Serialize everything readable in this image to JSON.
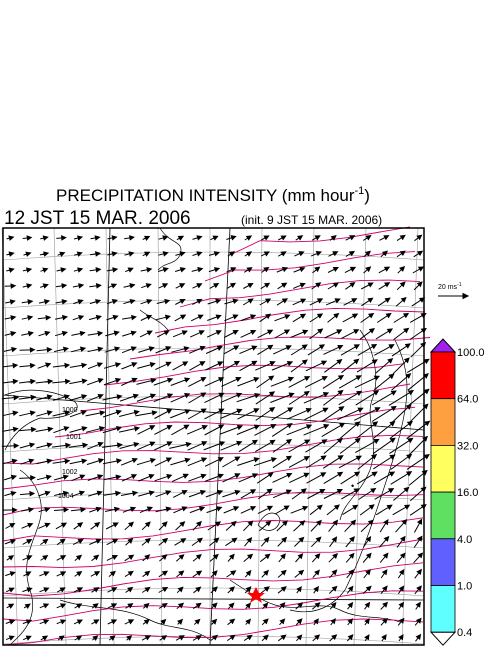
{
  "title": {
    "main": "PRECIPITATION INTENSITY (mm hour",
    "unit_sup": "-1",
    "close": ")"
  },
  "subtitle": {
    "valid": "12 JST 15 MAR. 2006",
    "init": "(init. 9 JST 15 MAR. 2006)"
  },
  "wind_reference": {
    "label": "20 ms",
    "unit_sup": "-1"
  },
  "colorbar": {
    "labels": [
      "100.0",
      "64.0",
      "32.0",
      "16.0",
      "4.0",
      "1.0",
      "0.4"
    ],
    "colors": [
      "#a020f0",
      "#ff0000",
      "#ffa040",
      "#ffff60",
      "#60e060",
      "#6060ff",
      "#60ffff",
      "#ffffff"
    ]
  },
  "isobar_labels": [
    "1000",
    "1001",
    "1002",
    "1004"
  ]
}
